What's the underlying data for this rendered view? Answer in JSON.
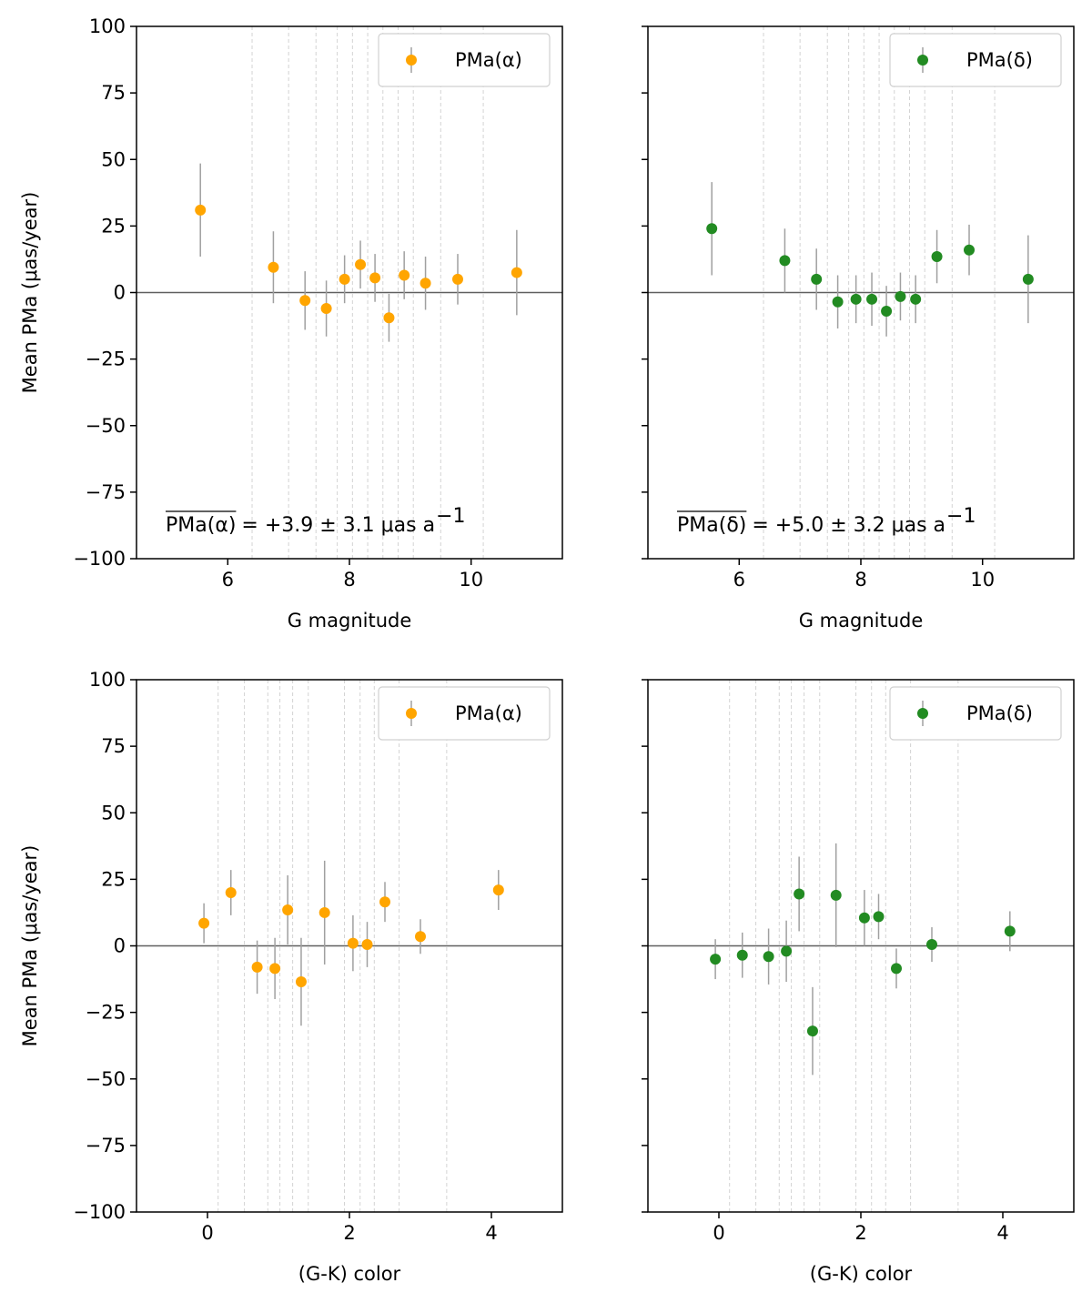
{
  "chart_data": [
    {
      "type": "scatter",
      "panel": "top-left",
      "xlabel": "G magnitude",
      "ylabel": "Mean PMa (μas/year)",
      "xlim": [
        4.5,
        11.5
      ],
      "ylim": [
        -100,
        100
      ],
      "xticks": [
        6,
        8,
        10
      ],
      "yticks": [
        100,
        75,
        50,
        25,
        0,
        -25,
        -50,
        -75,
        -100
      ],
      "show_yticklabels": true,
      "color": "#FFA500",
      "legend_label": "PMa(α)",
      "legend_location": "upper right",
      "annotation": "PMa(α) = +3.9 ± 3.1 μas a⁻¹",
      "annotation_parts": {
        "over": "PMa(α)",
        "value": "= +3.9 ± 3.1 μas a",
        "exp": "−1"
      },
      "bin_edges": [
        6.4,
        7.0,
        7.45,
        7.8,
        8.05,
        8.3,
        8.55,
        8.8,
        9.05,
        9.5,
        10.2
      ],
      "x": [
        5.55,
        6.75,
        7.27,
        7.62,
        7.92,
        8.18,
        8.42,
        8.65,
        8.9,
        9.25,
        9.78,
        10.75
      ],
      "y": [
        31,
        9.5,
        -3,
        -6,
        5,
        10.5,
        5.5,
        -9.5,
        6.5,
        3.5,
        5,
        7.5
      ],
      "yerr": [
        17.5,
        13.5,
        11,
        10.5,
        9,
        9,
        9,
        9,
        9,
        10,
        9.5,
        16
      ]
    },
    {
      "type": "scatter",
      "panel": "top-right",
      "xlabel": "G magnitude",
      "ylabel": "",
      "xlim": [
        4.5,
        11.5
      ],
      "ylim": [
        -100,
        100
      ],
      "xticks": [
        6,
        8,
        10
      ],
      "yticks": [
        100,
        75,
        50,
        25,
        0,
        -25,
        -50,
        -75,
        -100
      ],
      "show_yticklabels": false,
      "color": "#228B22",
      "legend_label": "PMa(δ)",
      "legend_location": "upper right",
      "annotation": "PMa(δ) = +5.0 ± 3.2 μas a⁻¹",
      "annotation_parts": {
        "over": "PMa(δ)",
        "value": "= +5.0 ± 3.2 μas a",
        "exp": "−1"
      },
      "bin_edges": [
        6.4,
        7.0,
        7.45,
        7.8,
        8.05,
        8.3,
        8.55,
        8.8,
        9.05,
        9.5,
        10.2
      ],
      "x": [
        5.55,
        6.75,
        7.27,
        7.62,
        7.92,
        8.18,
        8.42,
        8.65,
        8.9,
        9.25,
        9.78,
        10.75
      ],
      "y": [
        24,
        12,
        5,
        -3.5,
        -2.5,
        -2.5,
        -7,
        -1.5,
        -2.5,
        13.5,
        16,
        5
      ],
      "yerr": [
        17.5,
        12,
        11.5,
        10,
        9,
        10,
        9.5,
        9,
        9,
        10,
        9.5,
        16.5
      ]
    },
    {
      "type": "scatter",
      "panel": "bottom-left",
      "xlabel": "(G-K) color",
      "ylabel": "Mean PMa (μas/year)",
      "xlim": [
        -1,
        5
      ],
      "ylim": [
        -100,
        100
      ],
      "xticks": [
        0,
        2,
        4
      ],
      "yticks": [
        100,
        75,
        50,
        25,
        0,
        -25,
        -50,
        -75,
        -100
      ],
      "show_yticklabels": true,
      "color": "#FFA500",
      "legend_label": "PMa(α)",
      "legend_location": "upper right",
      "bin_edges": [
        0.15,
        0.52,
        0.85,
        1.02,
        1.2,
        1.42,
        1.93,
        2.15,
        2.35,
        2.7,
        3.37
      ],
      "x": [
        -0.05,
        0.33,
        0.7,
        0.95,
        1.13,
        1.32,
        1.65,
        2.05,
        2.25,
        2.5,
        3.0,
        4.1
      ],
      "y": [
        8.5,
        20,
        -8,
        -8.5,
        13.5,
        -13.5,
        12.5,
        1,
        0.5,
        16.5,
        3.5,
        21
      ],
      "yerr": [
        7.5,
        8.5,
        10,
        11.5,
        13,
        16.5,
        19.5,
        10.5,
        8.5,
        7.5,
        6.5,
        7.5
      ]
    },
    {
      "type": "scatter",
      "panel": "bottom-right",
      "xlabel": "(G-K) color",
      "ylabel": "",
      "xlim": [
        -1,
        5
      ],
      "ylim": [
        -100,
        100
      ],
      "xticks": [
        0,
        2,
        4
      ],
      "yticks": [
        100,
        75,
        50,
        25,
        0,
        -25,
        -50,
        -75,
        -100
      ],
      "show_yticklabels": false,
      "color": "#228B22",
      "legend_label": "PMa(δ)",
      "legend_location": "upper right",
      "bin_edges": [
        0.15,
        0.52,
        0.85,
        1.02,
        1.2,
        1.42,
        1.93,
        2.15,
        2.35,
        2.7,
        3.37
      ],
      "x": [
        -0.05,
        0.33,
        0.7,
        0.95,
        1.13,
        1.32,
        1.65,
        2.05,
        2.25,
        2.5,
        3.0,
        4.1
      ],
      "y": [
        -5,
        -3.5,
        -4,
        -2,
        19.5,
        -32,
        19,
        10.5,
        11,
        -8.5,
        0.5,
        5.5
      ],
      "yerr": [
        7.5,
        8.5,
        10.5,
        11.5,
        14,
        16.5,
        19.5,
        10.5,
        8.5,
        7.5,
        6.5,
        7.5
      ]
    }
  ]
}
